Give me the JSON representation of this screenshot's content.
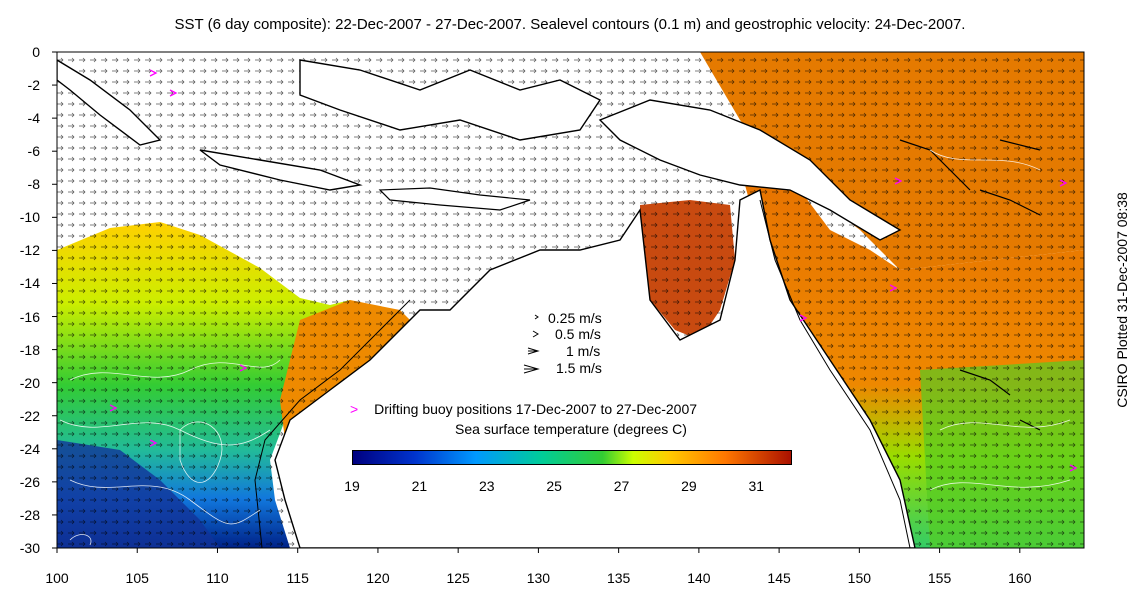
{
  "title": "SST (6 day composite): 22-Dec-2007 - 27-Dec-2007. Sealevel contours (0.1 m) and geostrophic velocity: 24-Dec-2007.",
  "side_note": "CSIRO Plotted 31-Dec-2007 08:38",
  "y_axis": {
    "ticks": [
      "0",
      "-2",
      "-4",
      "-6",
      "-8",
      "-10",
      "-12",
      "-14",
      "-16",
      "-18",
      "-20",
      "-22",
      "-24",
      "-26",
      "-28",
      "-30"
    ]
  },
  "x_axis": {
    "ticks": [
      "100",
      "105",
      "110",
      "115",
      "120",
      "125",
      "130",
      "135",
      "140",
      "145",
      "150",
      "155",
      "160"
    ]
  },
  "velocity_legend": {
    "items": [
      "0.25 m/s",
      "0.5 m/s",
      "1 m/s",
      "1.5 m/s"
    ]
  },
  "buoy_legend": {
    "marker": ">",
    "label": "Drifting buoy positions 17-Dec-2007 to 27-Dec-2007"
  },
  "colorbar": {
    "title": "Sea surface temperature (degrees C)",
    "ticks": [
      "19",
      "21",
      "23",
      "25",
      "27",
      "29",
      "31"
    ],
    "range": [
      19,
      32
    ]
  },
  "colors": {
    "land": "#ffffff",
    "missing": "#ffffff",
    "buoy": "#ff00ff",
    "coast": "#000000",
    "contour": "#ffffff"
  }
}
